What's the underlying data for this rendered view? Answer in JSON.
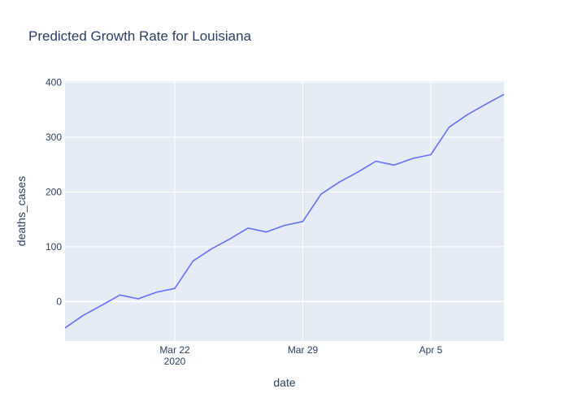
{
  "chart_data": {
    "type": "line",
    "title": "Predicted Growth Rate for Louisiana",
    "xlabel": "date",
    "ylabel": "deaths_cases",
    "x": [
      "2020-03-16",
      "2020-03-17",
      "2020-03-18",
      "2020-03-19",
      "2020-03-20",
      "2020-03-21",
      "2020-03-22",
      "2020-03-23",
      "2020-03-24",
      "2020-03-25",
      "2020-03-26",
      "2020-03-27",
      "2020-03-28",
      "2020-03-29",
      "2020-03-30",
      "2020-03-31",
      "2020-04-01",
      "2020-04-02",
      "2020-04-03",
      "2020-04-04",
      "2020-04-05",
      "2020-04-06",
      "2020-04-07",
      "2020-04-08",
      "2020-04-09"
    ],
    "series": [
      {
        "values": [
          -48,
          -25,
          -7,
          12,
          5,
          17,
          24,
          74,
          96,
          114,
          134,
          127,
          139,
          146,
          196,
          218,
          236,
          256,
          249,
          261,
          268,
          318,
          341,
          360,
          378
        ]
      }
    ],
    "xlim": [
      "2020-03-16",
      "2020-04-09"
    ],
    "ylim": [
      -72,
      402
    ],
    "x_ticks": [
      {
        "date": "2020-03-22",
        "label": "Mar 22",
        "sublabel": "2020"
      },
      {
        "date": "2020-03-29",
        "label": "Mar 29",
        "sublabel": ""
      },
      {
        "date": "2020-04-05",
        "label": "Apr 5",
        "sublabel": ""
      }
    ],
    "y_ticks": [
      0,
      100,
      200,
      300,
      400
    ],
    "grid": true,
    "colors": {
      "line": "#636efa",
      "plot_bg": "#e5ecf6",
      "grid": "#ffffff",
      "text": "#2a3f5f"
    }
  }
}
